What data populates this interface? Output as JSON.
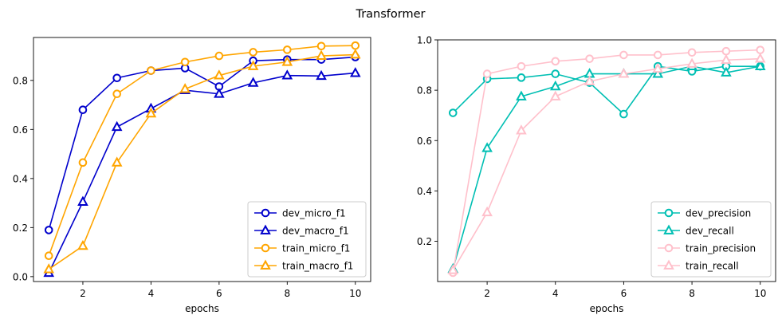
{
  "figure": {
    "suptitle": "Transformer"
  },
  "chart_data": [
    {
      "type": "line",
      "title": "",
      "xlabel": "epochs",
      "ylabel": "",
      "x": [
        1,
        2,
        3,
        4,
        5,
        6,
        7,
        8,
        9,
        10
      ],
      "xlim": [
        0.55,
        10.45
      ],
      "ylim": [
        -0.02,
        0.975
      ],
      "xticks": [
        2,
        4,
        6,
        8,
        10
      ],
      "yticks": [
        0.0,
        0.2,
        0.4,
        0.6,
        0.8
      ],
      "ytick_labels": [
        "0.0",
        "0.2",
        "0.4",
        "0.6",
        "0.8"
      ],
      "grid": false,
      "legend_position": "lower-right",
      "series": [
        {
          "name": "dev_micro_f1",
          "color": "#0000cc",
          "marker": "circle",
          "values": [
            0.19,
            0.68,
            0.81,
            0.84,
            0.85,
            0.775,
            0.88,
            0.885,
            0.885,
            0.895
          ]
        },
        {
          "name": "dev_macro_f1",
          "color": "#0000cc",
          "marker": "triangle",
          "values": [
            0.015,
            0.305,
            0.61,
            0.685,
            0.76,
            0.745,
            0.79,
            0.82,
            0.818,
            0.83
          ]
        },
        {
          "name": "train_micro_f1",
          "color": "#ffa500",
          "marker": "circle",
          "values": [
            0.085,
            0.465,
            0.745,
            0.84,
            0.875,
            0.9,
            0.915,
            0.925,
            0.94,
            0.942
          ]
        },
        {
          "name": "train_macro_f1",
          "color": "#ffa500",
          "marker": "triangle",
          "values": [
            0.03,
            0.125,
            0.465,
            0.665,
            0.765,
            0.82,
            0.858,
            0.875,
            0.9,
            0.905
          ]
        }
      ]
    },
    {
      "type": "line",
      "title": "",
      "xlabel": "epochs",
      "ylabel": "",
      "x": [
        1,
        2,
        3,
        4,
        5,
        6,
        7,
        8,
        9,
        10
      ],
      "xlim": [
        0.55,
        10.45
      ],
      "ylim": [
        0.04,
        1.0
      ],
      "xticks": [
        2,
        4,
        6,
        8,
        10
      ],
      "yticks": [
        0.2,
        0.4,
        0.6,
        0.8,
        1.0
      ],
      "ytick_labels": [
        "0.2",
        "0.4",
        "0.6",
        "0.8",
        "1.0"
      ],
      "grid": false,
      "legend_position": "lower-right",
      "series": [
        {
          "name": "dev_precision",
          "color": "#00bfb3",
          "marker": "circle",
          "values": [
            0.71,
            0.845,
            0.85,
            0.865,
            0.83,
            0.705,
            0.895,
            0.875,
            0.895,
            0.895
          ]
        },
        {
          "name": "dev_recall",
          "color": "#00bfb3",
          "marker": "triangle",
          "values": [
            0.09,
            0.57,
            0.775,
            0.815,
            0.865,
            0.865,
            0.865,
            0.895,
            0.87,
            0.895
          ]
        },
        {
          "name": "train_precision",
          "color": "#ffc0cb",
          "marker": "circle",
          "values": [
            0.075,
            0.865,
            0.895,
            0.915,
            0.925,
            0.94,
            0.94,
            0.95,
            0.955,
            0.96
          ]
        },
        {
          "name": "train_recall",
          "color": "#ffc0cb",
          "marker": "triangle",
          "values": [
            0.085,
            0.315,
            0.64,
            0.775,
            0.835,
            0.865,
            0.885,
            0.905,
            0.92,
            0.925
          ]
        }
      ]
    }
  ]
}
